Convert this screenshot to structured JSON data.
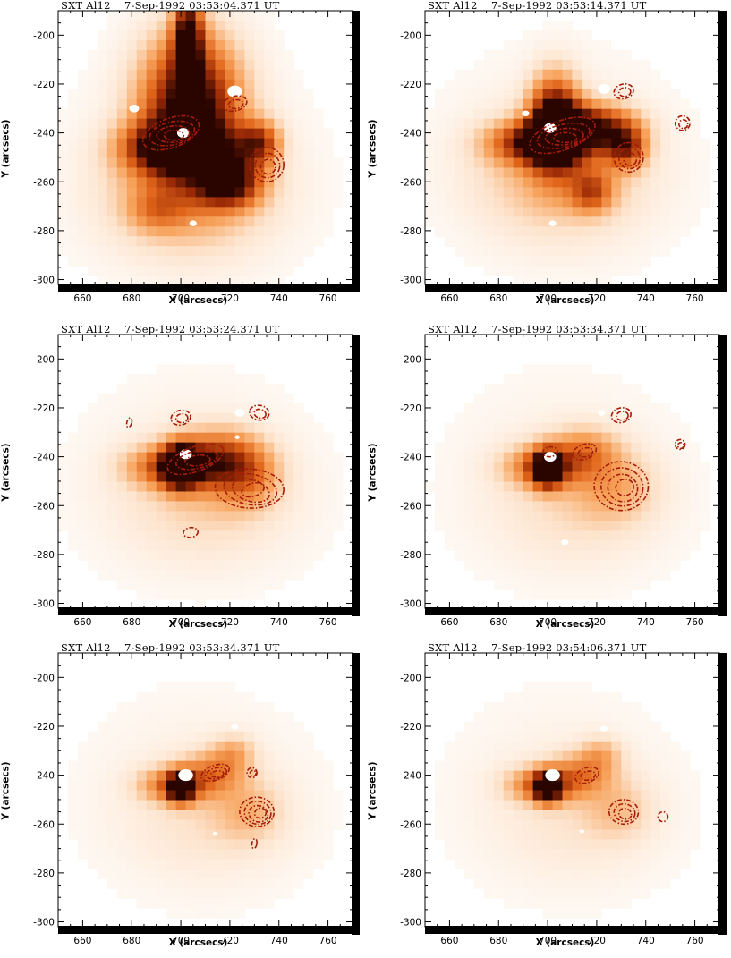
{
  "chart_data": {
    "type": "heatmap",
    "xlabel": "X (arcsecs)",
    "ylabel": "Y (arcsecs)",
    "xlim": [
      650,
      770
    ],
    "ylim": [
      -302,
      -190
    ],
    "x_ticks": [
      "660",
      "680",
      "700",
      "720",
      "740",
      "760"
    ],
    "y_ticks": [
      "-200",
      "-220",
      "-240",
      "-260",
      "-280",
      "-300"
    ],
    "colormap": [
      "#ffffff",
      "#fde3cc",
      "#f7a35c",
      "#e0651a",
      "#9a2a06",
      "#2a0500"
    ],
    "contour_color": "#a51d0a",
    "panels": [
      {
        "title": "SXT Al12    7-Sep-1992 03:53:04.371 UT",
        "blobs": [
          {
            "x": 704,
            "y": -228,
            "sx": 14,
            "sy": 20,
            "v": 1.0
          },
          {
            "x": 698,
            "y": -246,
            "sx": 14,
            "sy": 7,
            "v": 0.9
          },
          {
            "x": 720,
            "y": -260,
            "sx": 9,
            "sy": 7,
            "v": 0.75
          },
          {
            "x": 732,
            "y": -244,
            "sx": 6,
            "sy": 6,
            "v": 0.6
          },
          {
            "x": 703,
            "y": -265,
            "sx": 24,
            "sy": 18,
            "v": 0.35
          },
          {
            "x": 703,
            "y": -200,
            "sx": 4,
            "sy": 12,
            "v": 0.85
          },
          {
            "x": 690,
            "y": -272,
            "sx": 8,
            "sy": 6,
            "v": 0.25
          }
        ],
        "whites": [
          {
            "x": 701,
            "y": -240,
            "r": 2.5
          },
          {
            "x": 722,
            "y": -223,
            "r": 3
          },
          {
            "x": 681,
            "y": -230,
            "r": 2
          },
          {
            "x": 705,
            "y": -277,
            "r": 1.5
          }
        ],
        "contours": [
          {
            "x": 696,
            "y": -240,
            "rx": 12,
            "ry": 6,
            "n": 4
          },
          {
            "x": 735,
            "y": -253,
            "rx": 7,
            "ry": 7,
            "n": 3
          },
          {
            "x": 722,
            "y": -228,
            "rx": 5,
            "ry": 3,
            "n": 2
          }
        ]
      },
      {
        "title": "SXT Al12    7-Sep-1992 03:53:14.371 UT",
        "blobs": [
          {
            "x": 703,
            "y": -236,
            "sx": 7,
            "sy": 13,
            "v": 1.0
          },
          {
            "x": 698,
            "y": -244,
            "sx": 14,
            "sy": 6,
            "v": 0.85
          },
          {
            "x": 718,
            "y": -237,
            "sx": 12,
            "sy": 6,
            "v": 0.7
          },
          {
            "x": 732,
            "y": -246,
            "sx": 6,
            "sy": 6,
            "v": 0.6
          },
          {
            "x": 718,
            "y": -264,
            "sx": 6,
            "sy": 6,
            "v": 0.45
          },
          {
            "x": 705,
            "y": -258,
            "sx": 24,
            "sy": 18,
            "v": 0.3
          }
        ],
        "whites": [
          {
            "x": 701,
            "y": -238,
            "r": 2.5
          },
          {
            "x": 723,
            "y": -222,
            "r": 2.5
          },
          {
            "x": 691,
            "y": -232,
            "r": 1.5
          },
          {
            "x": 702,
            "y": -277,
            "r": 1.5
          }
        ],
        "contours": [
          {
            "x": 706,
            "y": -241,
            "rx": 14,
            "ry": 6,
            "n": 4
          },
          {
            "x": 733,
            "y": -250,
            "rx": 6,
            "ry": 6,
            "n": 3
          },
          {
            "x": 731,
            "y": -223,
            "rx": 4,
            "ry": 3,
            "n": 2
          },
          {
            "x": 755,
            "y": -236,
            "rx": 3,
            "ry": 3,
            "n": 2
          }
        ]
      },
      {
        "title": "SXT Al12    7-Sep-1992 03:53:24.371 UT",
        "blobs": [
          {
            "x": 700,
            "y": -244,
            "sx": 5,
            "sy": 6,
            "v": 1.0
          },
          {
            "x": 697,
            "y": -244,
            "sx": 13,
            "sy": 6,
            "v": 0.55
          },
          {
            "x": 715,
            "y": -240,
            "sx": 12,
            "sy": 8,
            "v": 0.45
          },
          {
            "x": 726,
            "y": -248,
            "sx": 10,
            "sy": 9,
            "v": 0.35
          },
          {
            "x": 710,
            "y": -258,
            "sx": 25,
            "sy": 18,
            "v": 0.18
          }
        ],
        "whites": [
          {
            "x": 702,
            "y": -239,
            "r": 2.5
          },
          {
            "x": 724,
            "y": -222,
            "r": 2
          },
          {
            "x": 723,
            "y": -232,
            "r": 1
          }
        ],
        "contours": [
          {
            "x": 706,
            "y": -241,
            "rx": 12,
            "ry": 5,
            "n": 3
          },
          {
            "x": 728,
            "y": -253,
            "rx": 14,
            "ry": 8,
            "n": 4
          },
          {
            "x": 700,
            "y": -224,
            "rx": 4,
            "ry": 3,
            "n": 2
          },
          {
            "x": 732,
            "y": -222,
            "rx": 4,
            "ry": 3,
            "n": 2
          },
          {
            "x": 704,
            "y": -271,
            "rx": 3,
            "ry": 2,
            "n": 1
          },
          {
            "x": 679,
            "y": -226,
            "rx": 1,
            "ry": 2,
            "n": 1
          }
        ]
      },
      {
        "title": "SXT Al12    7-Sep-1992 03:53:34.371 UT",
        "blobs": [
          {
            "x": 700,
            "y": -245,
            "sx": 4,
            "sy": 5,
            "v": 0.95
          },
          {
            "x": 698,
            "y": -244,
            "sx": 11,
            "sy": 6,
            "v": 0.5
          },
          {
            "x": 715,
            "y": -238,
            "sx": 10,
            "sy": 7,
            "v": 0.35
          },
          {
            "x": 728,
            "y": -253,
            "sx": 12,
            "sy": 10,
            "v": 0.22
          },
          {
            "x": 712,
            "y": -260,
            "sx": 24,
            "sy": 18,
            "v": 0.14
          }
        ],
        "whites": [
          {
            "x": 701,
            "y": -240,
            "r": 2.5
          },
          {
            "x": 722,
            "y": -222,
            "r": 1.5
          },
          {
            "x": 707,
            "y": -275,
            "r": 1.5
          }
        ],
        "contours": [
          {
            "x": 715,
            "y": -238,
            "rx": 5,
            "ry": 3,
            "n": 2
          },
          {
            "x": 730,
            "y": -252,
            "rx": 11,
            "ry": 10,
            "n": 4
          },
          {
            "x": 730,
            "y": -223,
            "rx": 4,
            "ry": 3,
            "n": 2
          },
          {
            "x": 754,
            "y": -235,
            "rx": 2,
            "ry": 2,
            "n": 2
          },
          {
            "x": 701,
            "y": -238,
            "rx": 3,
            "ry": 2,
            "n": 1
          }
        ]
      },
      {
        "title": "SXT Al12    7-Sep-1992 03:53:34.371 UT",
        "blobs": [
          {
            "x": 700,
            "y": -245,
            "sx": 3.5,
            "sy": 4,
            "v": 0.95
          },
          {
            "x": 698,
            "y": -244,
            "sx": 10,
            "sy": 5,
            "v": 0.5
          },
          {
            "x": 714,
            "y": -238,
            "sx": 9,
            "sy": 6,
            "v": 0.32
          },
          {
            "x": 722,
            "y": -230,
            "sx": 6,
            "sy": 5,
            "v": 0.22
          },
          {
            "x": 728,
            "y": -255,
            "sx": 10,
            "sy": 9,
            "v": 0.2
          },
          {
            "x": 712,
            "y": -258,
            "sx": 24,
            "sy": 18,
            "v": 0.12
          }
        ],
        "whites": [
          {
            "x": 702,
            "y": -240,
            "r": 3
          },
          {
            "x": 722,
            "y": -220,
            "r": 1.5
          },
          {
            "x": 714,
            "y": -264,
            "r": 1
          }
        ],
        "contours": [
          {
            "x": 714,
            "y": -239,
            "rx": 6,
            "ry": 3,
            "n": 3
          },
          {
            "x": 731,
            "y": -255,
            "rx": 7,
            "ry": 6,
            "n": 4
          },
          {
            "x": 729,
            "y": -239,
            "rx": 2,
            "ry": 2,
            "n": 2
          },
          {
            "x": 730,
            "y": -268,
            "rx": 1,
            "ry": 2,
            "n": 1
          }
        ]
      },
      {
        "title": "SXT Al12    7-Sep-1992 03:54:06.371 UT",
        "blobs": [
          {
            "x": 700,
            "y": -245,
            "sx": 3.5,
            "sy": 4,
            "v": 0.95
          },
          {
            "x": 698,
            "y": -244,
            "sx": 10,
            "sy": 5,
            "v": 0.5
          },
          {
            "x": 714,
            "y": -239,
            "sx": 9,
            "sy": 6,
            "v": 0.32
          },
          {
            "x": 722,
            "y": -231,
            "sx": 6,
            "sy": 5,
            "v": 0.22
          },
          {
            "x": 729,
            "y": -254,
            "sx": 10,
            "sy": 9,
            "v": 0.18
          },
          {
            "x": 712,
            "y": -258,
            "sx": 24,
            "sy": 18,
            "v": 0.1
          }
        ],
        "whites": [
          {
            "x": 702,
            "y": -240,
            "r": 3
          },
          {
            "x": 723,
            "y": -221,
            "r": 1.5
          },
          {
            "x": 714,
            "y": -263,
            "r": 1
          }
        ],
        "contours": [
          {
            "x": 716,
            "y": -240,
            "rx": 5,
            "ry": 3,
            "n": 2
          },
          {
            "x": 731,
            "y": -255,
            "rx": 6,
            "ry": 5,
            "n": 3
          },
          {
            "x": 747,
            "y": -257,
            "rx": 2,
            "ry": 2,
            "n": 1
          }
        ]
      }
    ]
  }
}
